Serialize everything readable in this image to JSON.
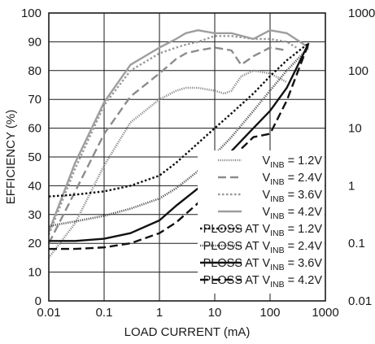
{
  "chart_data": {
    "type": "line",
    "title": "",
    "xlabel": "LOAD CURRENT (mA)",
    "ylabel": "EFFICIENCY (%)",
    "x_scale": "log",
    "xlim": [
      0.01,
      1000
    ],
    "ylim": [
      0,
      100
    ],
    "y2_scale": "log",
    "y2lim": [
      0.01,
      1000
    ],
    "grid": true,
    "legend_position": "right",
    "x_ticks": [
      {
        "value": 0.01,
        "label": "0.01"
      },
      {
        "value": 0.1,
        "label": "0.1"
      },
      {
        "value": 1,
        "label": "1"
      },
      {
        "value": 10,
        "label": "10"
      },
      {
        "value": 100,
        "label": "100"
      },
      {
        "value": 1000,
        "label": "1000"
      }
    ],
    "y_ticks": [
      {
        "value": 0,
        "label": "0"
      },
      {
        "value": 10,
        "label": "10"
      },
      {
        "value": 20,
        "label": "20"
      },
      {
        "value": 30,
        "label": "30"
      },
      {
        "value": 40,
        "label": "40"
      },
      {
        "value": 50,
        "label": "50"
      },
      {
        "value": 60,
        "label": "60"
      },
      {
        "value": 70,
        "label": "70"
      },
      {
        "value": 80,
        "label": "80"
      },
      {
        "value": 90,
        "label": "90"
      },
      {
        "value": 100,
        "label": "100"
      }
    ],
    "y2_ticks": [
      {
        "value": 0.01,
        "label": "0.01"
      },
      {
        "value": 0.1,
        "label": "0.1"
      },
      {
        "value": 1,
        "label": "1"
      },
      {
        "value": 10,
        "label": "10"
      },
      {
        "value": 100,
        "label": "100"
      },
      {
        "value": 1000,
        "label": "1000"
      }
    ],
    "series": [
      {
        "name": "V_INB = 1.2V",
        "label_prefix": "V",
        "label_sub": "INB",
        "label_suffix": " = 1.2V",
        "axis": "efficiency",
        "style": "fine-dotted",
        "color": "#8c8c8c",
        "x": [
          0.01,
          0.03,
          0.1,
          0.3,
          1,
          2,
          3,
          5,
          10,
          15,
          20,
          30,
          50,
          100,
          200
        ],
        "y": [
          15,
          27,
          47,
          62,
          70,
          73,
          74,
          74,
          73,
          72,
          73,
          78,
          80,
          79,
          76
        ]
      },
      {
        "name": "V_INB = 2.4V",
        "label_prefix": "V",
        "label_sub": "INB",
        "label_suffix": " = 2.4V",
        "axis": "efficiency",
        "style": "dashed",
        "color": "#8c8c8c",
        "x": [
          0.01,
          0.03,
          0.1,
          0.3,
          1,
          2,
          3,
          5,
          10,
          20,
          30,
          50,
          100,
          200
        ],
        "y": [
          20,
          38,
          58,
          71,
          79,
          84,
          86,
          87,
          88,
          87,
          82,
          85,
          88,
          87
        ]
      },
      {
        "name": "V_INB = 3.6V",
        "label_prefix": "V",
        "label_sub": "INB",
        "label_suffix": " = 3.6V",
        "axis": "efficiency",
        "style": "dotted",
        "color": "#9a9a9a",
        "x": [
          0.01,
          0.03,
          0.1,
          0.3,
          1,
          2,
          3,
          5,
          10,
          20,
          50,
          100,
          200,
          300
        ],
        "y": [
          23,
          46,
          68,
          80,
          86,
          88,
          89,
          90,
          92,
          92,
          91,
          91,
          90,
          88
        ]
      },
      {
        "name": "V_INB = 4.2V",
        "label_prefix": "V",
        "label_sub": "INB",
        "label_suffix": " = 4.2V",
        "axis": "efficiency",
        "style": "solid",
        "color": "#9e9e9e",
        "x": [
          0.01,
          0.03,
          0.1,
          0.3,
          1,
          2,
          3,
          5,
          10,
          20,
          50,
          100,
          200,
          500
        ],
        "y": [
          24,
          48,
          69,
          82,
          88,
          91,
          93,
          94,
          93,
          93,
          91,
          94,
          93,
          88
        ]
      },
      {
        "name": "PLOSS AT V_INB = 1.2V",
        "label_prefix": "PLOSS AT V",
        "label_sub": "INB",
        "label_suffix": " = 1.2V",
        "axis": "power_loss",
        "style": "dotted",
        "color": "#111111",
        "x": [
          0.01,
          0.03,
          0.1,
          0.3,
          1,
          2,
          5,
          10,
          20,
          50,
          100,
          200,
          500
        ],
        "y": [
          0.65,
          0.7,
          0.8,
          1.0,
          1.5,
          2.5,
          5.5,
          10,
          18,
          40,
          80,
          150,
          300
        ]
      },
      {
        "name": "PLOSS AT V_INB = 2.4V",
        "label_prefix": "PLOSS AT V",
        "label_sub": "INB",
        "label_suffix": " = 2.4V",
        "axis": "power_loss",
        "style": "fine-dotted",
        "color": "#555555",
        "x": [
          0.01,
          0.03,
          0.1,
          0.3,
          1,
          2,
          5,
          10,
          20,
          50,
          100,
          200,
          500
        ],
        "y": [
          0.2,
          0.24,
          0.3,
          0.4,
          0.6,
          0.9,
          1.8,
          3.5,
          7,
          20,
          45,
          100,
          250
        ]
      },
      {
        "name": "PLOSS AT V_INB = 3.6V",
        "label_prefix": "PLOSS AT V",
        "label_sub": "INB",
        "label_suffix": " = 3.6V",
        "axis": "power_loss",
        "style": "solid",
        "color": "#111111",
        "x": [
          0.01,
          0.03,
          0.1,
          0.3,
          1,
          2,
          5,
          10,
          20,
          50,
          100,
          200,
          500
        ],
        "y": [
          0.11,
          0.11,
          0.12,
          0.15,
          0.25,
          0.45,
          0.9,
          1.5,
          4,
          10,
          20,
          50,
          300
        ]
      },
      {
        "name": "PLOSS AT V_INB = 4.2V",
        "label_prefix": "PLOSS AT V",
        "label_sub": "INB",
        "label_suffix": " = 4.2V",
        "axis": "power_loss",
        "style": "dashed",
        "color": "#111111",
        "x": [
          0.01,
          0.03,
          0.1,
          0.3,
          1,
          2,
          5,
          10,
          20,
          50,
          100,
          200,
          500
        ],
        "y": [
          0.08,
          0.08,
          0.085,
          0.1,
          0.15,
          0.23,
          0.5,
          1.2,
          3,
          7,
          8,
          30,
          300
        ]
      }
    ]
  }
}
